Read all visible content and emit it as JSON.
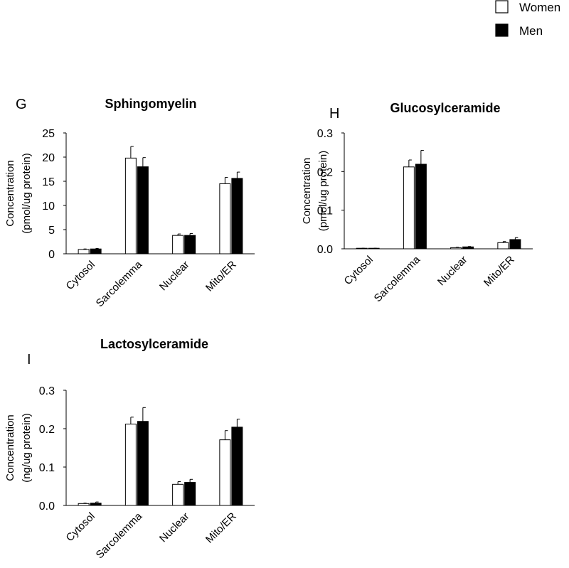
{
  "legend": {
    "items": [
      {
        "label": "Women",
        "color": "#ffffff"
      },
      {
        "label": "Men",
        "color": "#000000"
      }
    ]
  },
  "chart_data": [
    {
      "panel": "G",
      "type": "bar",
      "title": "Sphingomyelin",
      "xlabel": "",
      "ylabel": [
        "Concentration",
        "(pmol/ug protein)"
      ],
      "categories": [
        "Cytosol",
        "Sarcolemma",
        "Nuclear",
        "Mito/ER"
      ],
      "ylim": [
        0,
        25
      ],
      "yticks": [
        0,
        5,
        10,
        15,
        20,
        25
      ],
      "ytick_labels": [
        "0",
        "5",
        "10",
        "15",
        "20",
        "25"
      ],
      "series": [
        {
          "name": "Women",
          "color": "#ffffff",
          "values": [
            0.9,
            19.8,
            3.8,
            14.5
          ],
          "errors": [
            0.1,
            2.4,
            0.3,
            1.3
          ]
        },
        {
          "name": "Men",
          "color": "#000000",
          "values": [
            1.0,
            18.0,
            3.8,
            15.6
          ],
          "errors": [
            0.1,
            1.9,
            0.4,
            1.3
          ]
        }
      ]
    },
    {
      "panel": "H",
      "type": "bar",
      "title": "Glucosylceramide",
      "xlabel": "",
      "ylabel": [
        "Concentration",
        "(pmol/ug protein)"
      ],
      "categories": [
        "Cytosol",
        "Sarcolemma",
        "Nuclear",
        "Mito/ER"
      ],
      "ylim": [
        0,
        0.3
      ],
      "yticks": [
        0,
        0.1,
        0.2,
        0.3
      ],
      "ytick_labels": [
        "0.0",
        "0.1",
        "0.2",
        "0.3"
      ],
      "series": [
        {
          "name": "Women",
          "color": "#ffffff",
          "values": [
            0.001,
            0.212,
            0.003,
            0.016
          ],
          "errors": [
            0.0005,
            0.018,
            0.001,
            0.003
          ]
        },
        {
          "name": "Men",
          "color": "#000000",
          "values": [
            0.001,
            0.219,
            0.005,
            0.024
          ],
          "errors": [
            0.0005,
            0.036,
            0.001,
            0.005
          ]
        }
      ]
    },
    {
      "panel": "I",
      "type": "bar",
      "title": "Lactosylceramide",
      "xlabel": "",
      "ylabel": [
        "Concentration",
        "(ng/ug protein)"
      ],
      "categories": [
        "Cytosol",
        "Sarcolemma",
        "Nuclear",
        "Mito/ER"
      ],
      "ylim": [
        0,
        0.3
      ],
      "yticks": [
        0,
        0.1,
        0.2,
        0.3
      ],
      "ytick_labels": [
        "0.0",
        "0.1",
        "0.2",
        "0.3"
      ],
      "series": [
        {
          "name": "Women",
          "color": "#ffffff",
          "values": [
            0.005,
            0.212,
            0.055,
            0.171
          ],
          "errors": [
            0.001,
            0.018,
            0.007,
            0.024
          ]
        },
        {
          "name": "Men",
          "color": "#000000",
          "values": [
            0.006,
            0.219,
            0.06,
            0.204
          ],
          "errors": [
            0.003,
            0.036,
            0.008,
            0.021
          ]
        }
      ]
    }
  ]
}
